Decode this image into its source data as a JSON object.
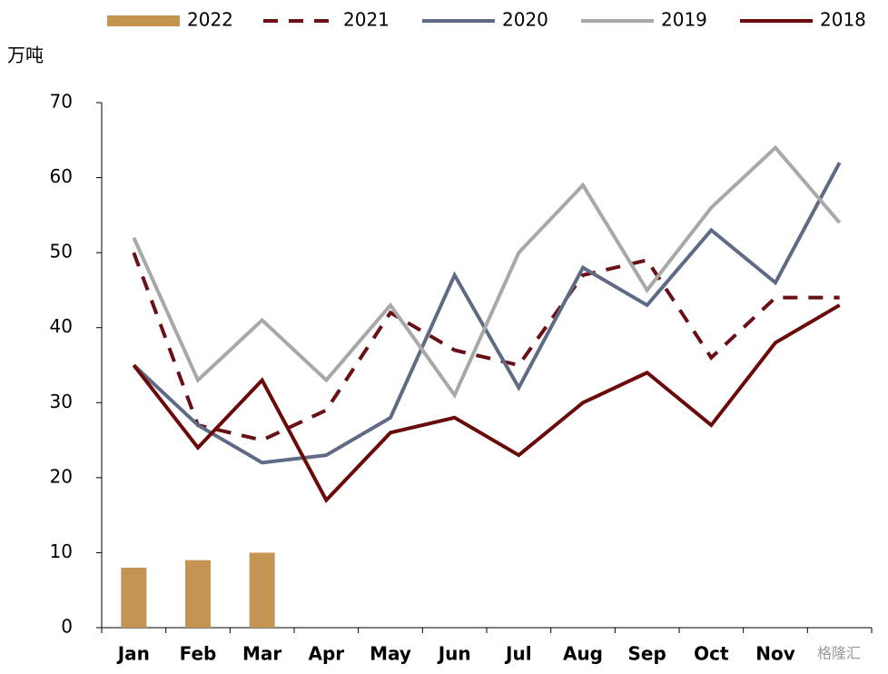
{
  "chart_data": {
    "type": "line",
    "y_label": "万吨",
    "watermark": "格隆汇",
    "categories": [
      "Jan",
      "Feb",
      "Mar",
      "Apr",
      "May",
      "Jun",
      "Jul",
      "Aug",
      "Sep",
      "Oct",
      "Nov",
      null
    ],
    "series": [
      {
        "name": "2022",
        "type": "bar",
        "color": "#c49452",
        "values": [
          8,
          9,
          10,
          null,
          null,
          null,
          null,
          null,
          null,
          null,
          null,
          null
        ]
      },
      {
        "name": "2021",
        "type": "line",
        "dashed": true,
        "color": "#6b0f16",
        "values": [
          50,
          27,
          25,
          29,
          42,
          37,
          35,
          47,
          49,
          36,
          44,
          44
        ]
      },
      {
        "name": "2020",
        "type": "line",
        "color": "#5f6b85",
        "values": [
          35,
          27,
          22,
          23,
          28,
          47,
          32,
          48,
          43,
          53,
          46,
          62
        ]
      },
      {
        "name": "2019",
        "type": "line",
        "color": "#a8a8a8",
        "values": [
          52,
          33,
          41,
          33,
          43,
          31,
          50,
          59,
          45,
          56,
          64,
          54
        ]
      },
      {
        "name": "2018",
        "type": "line",
        "color": "#6b0a0a",
        "values": [
          35,
          24,
          33,
          17,
          26,
          28,
          23,
          30,
          34,
          27,
          38,
          43
        ]
      }
    ],
    "ylim": [
      0,
      70
    ],
    "yticks": [
      0,
      10,
      20,
      30,
      40,
      50,
      60,
      70
    ],
    "grid": false,
    "legend": "top"
  }
}
